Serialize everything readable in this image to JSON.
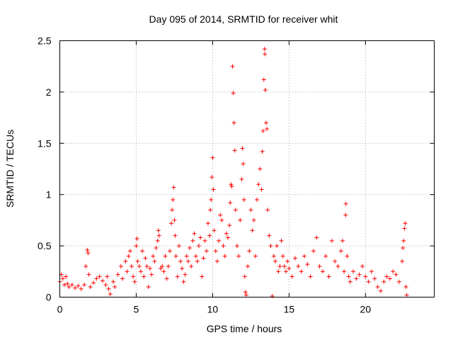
{
  "chart_data": {
    "type": "scatter",
    "title": "Day 095 of 2014, SRMTID for receiver whit",
    "xlabel": "GPS time / hours",
    "ylabel": "SRMTID / TECUs",
    "xlim": [
      0,
      24.5
    ],
    "ylim": [
      0,
      2.5
    ],
    "xticks": [
      0,
      5,
      10,
      15,
      20
    ],
    "xtick_labels": [
      "0",
      "5",
      "10",
      "15",
      "20"
    ],
    "yticks": [
      0,
      0.5,
      1,
      1.5,
      2,
      2.5
    ],
    "ytick_labels": [
      "0",
      "0.5",
      "1",
      "1.5",
      "2",
      "2.5"
    ],
    "grid": true,
    "marker": "+",
    "color": "#ff0000",
    "series": [
      {
        "name": "SRMTID",
        "points": [
          [
            0.0,
            0.15
          ],
          [
            0.1,
            0.22
          ],
          [
            0.2,
            0.18
          ],
          [
            0.3,
            0.12
          ],
          [
            0.4,
            0.2
          ],
          [
            0.5,
            0.13
          ],
          [
            0.6,
            0.1
          ],
          [
            0.8,
            0.12
          ],
          [
            1.0,
            0.09
          ],
          [
            1.2,
            0.11
          ],
          [
            1.4,
            0.08
          ],
          [
            1.6,
            0.12
          ],
          [
            1.7,
            0.3
          ],
          [
            1.8,
            0.46
          ],
          [
            1.85,
            0.43
          ],
          [
            1.9,
            0.22
          ],
          [
            2.0,
            0.1
          ],
          [
            2.2,
            0.14
          ],
          [
            2.4,
            0.18
          ],
          [
            2.6,
            0.2
          ],
          [
            2.8,
            0.16
          ],
          [
            3.0,
            0.12
          ],
          [
            3.1,
            0.2
          ],
          [
            3.2,
            0.08
          ],
          [
            3.3,
            0.03
          ],
          [
            3.5,
            0.15
          ],
          [
            3.6,
            0.1
          ],
          [
            3.8,
            0.22
          ],
          [
            4.0,
            0.3
          ],
          [
            4.1,
            0.18
          ],
          [
            4.3,
            0.35
          ],
          [
            4.4,
            0.25
          ],
          [
            4.5,
            0.4
          ],
          [
            4.6,
            0.45
          ],
          [
            4.7,
            0.3
          ],
          [
            4.8,
            0.2
          ],
          [
            4.9,
            0.15
          ],
          [
            5.0,
            0.5
          ],
          [
            5.05,
            0.57
          ],
          [
            5.1,
            0.35
          ],
          [
            5.2,
            0.3
          ],
          [
            5.3,
            0.25
          ],
          [
            5.4,
            0.45
          ],
          [
            5.5,
            0.2
          ],
          [
            5.6,
            0.38
          ],
          [
            5.7,
            0.3
          ],
          [
            5.8,
            0.1
          ],
          [
            5.9,
            0.28
          ],
          [
            6.0,
            0.22
          ],
          [
            6.1,
            0.4
          ],
          [
            6.2,
            0.35
          ],
          [
            6.3,
            0.48
          ],
          [
            6.4,
            0.55
          ],
          [
            6.45,
            0.65
          ],
          [
            6.5,
            0.6
          ],
          [
            6.6,
            0.28
          ],
          [
            6.7,
            0.3
          ],
          [
            6.8,
            0.25
          ],
          [
            6.9,
            0.4
          ],
          [
            7.0,
            0.18
          ],
          [
            7.1,
            0.3
          ],
          [
            7.2,
            0.45
          ],
          [
            7.3,
            0.72
          ],
          [
            7.35,
            0.85
          ],
          [
            7.4,
            0.95
          ],
          [
            7.45,
            1.07
          ],
          [
            7.5,
            0.75
          ],
          [
            7.55,
            0.6
          ],
          [
            7.6,
            0.4
          ],
          [
            7.7,
            0.2
          ],
          [
            7.8,
            0.5
          ],
          [
            7.9,
            0.35
          ],
          [
            8.0,
            0.28
          ],
          [
            8.1,
            0.15
          ],
          [
            8.2,
            0.22
          ],
          [
            8.3,
            0.4
          ],
          [
            8.4,
            0.35
          ],
          [
            8.5,
            0.48
          ],
          [
            8.6,
            0.3
          ],
          [
            8.7,
            0.55
          ],
          [
            8.8,
            0.62
          ],
          [
            8.9,
            0.4
          ],
          [
            9.0,
            0.35
          ],
          [
            9.1,
            0.5
          ],
          [
            9.2,
            0.58
          ],
          [
            9.3,
            0.2
          ],
          [
            9.4,
            0.38
          ],
          [
            9.5,
            0.55
          ],
          [
            9.6,
            0.45
          ],
          [
            9.7,
            0.72
          ],
          [
            9.8,
            0.6
          ],
          [
            9.85,
            0.85
          ],
          [
            9.9,
            0.95
          ],
          [
            9.95,
            1.17
          ],
          [
            10.0,
            1.36
          ],
          [
            10.05,
            1.05
          ],
          [
            10.1,
            0.65
          ],
          [
            10.2,
            0.45
          ],
          [
            10.3,
            0.35
          ],
          [
            10.4,
            0.55
          ],
          [
            10.5,
            0.8
          ],
          [
            10.6,
            0.75
          ],
          [
            10.7,
            0.5
          ],
          [
            10.8,
            0.4
          ],
          [
            10.9,
            0.62
          ],
          [
            11.0,
            0.58
          ],
          [
            11.1,
            0.7
          ],
          [
            11.15,
            0.92
          ],
          [
            11.2,
            1.1
          ],
          [
            11.25,
            1.08
          ],
          [
            11.3,
            2.25
          ],
          [
            11.35,
            1.99
          ],
          [
            11.4,
            1.7
          ],
          [
            11.45,
            1.43
          ],
          [
            11.5,
            0.85
          ],
          [
            11.6,
            0.5
          ],
          [
            11.7,
            0.4
          ],
          [
            11.8,
            0.75
          ],
          [
            11.9,
            1.15
          ],
          [
            11.95,
            1.45
          ],
          [
            12.0,
            1.3
          ],
          [
            12.05,
            0.95
          ],
          [
            12.1,
            0.2
          ],
          [
            12.15,
            0.05
          ],
          [
            12.2,
            0.02
          ],
          [
            12.3,
            0.3
          ],
          [
            12.4,
            0.45
          ],
          [
            12.5,
            0.85
          ],
          [
            12.6,
            0.65
          ],
          [
            12.7,
            0.75
          ],
          [
            12.8,
            0.4
          ],
          [
            12.9,
            0.95
          ],
          [
            13.0,
            1.1
          ],
          [
            13.1,
            1.25
          ],
          [
            13.2,
            1.05
          ],
          [
            13.25,
            1.42
          ],
          [
            13.3,
            1.62
          ],
          [
            13.35,
            2.12
          ],
          [
            13.4,
            2.42
          ],
          [
            13.42,
            2.37
          ],
          [
            13.45,
            2.02
          ],
          [
            13.5,
            1.7
          ],
          [
            13.55,
            1.64
          ],
          [
            13.6,
            0.85
          ],
          [
            13.7,
            0.6
          ],
          [
            13.8,
            0.5
          ],
          [
            13.9,
            0.01
          ],
          [
            14.0,
            0.4
          ],
          [
            14.1,
            0.35
          ],
          [
            14.2,
            0.5
          ],
          [
            14.3,
            0.25
          ],
          [
            14.4,
            0.3
          ],
          [
            14.5,
            0.55
          ],
          [
            14.6,
            0.4
          ],
          [
            14.7,
            0.3
          ],
          [
            14.8,
            0.25
          ],
          [
            14.9,
            0.35
          ],
          [
            15.0,
            0.28
          ],
          [
            15.2,
            0.2
          ],
          [
            15.4,
            0.38
          ],
          [
            15.6,
            0.3
          ],
          [
            15.8,
            0.25
          ],
          [
            16.0,
            0.4
          ],
          [
            16.2,
            0.32
          ],
          [
            16.4,
            0.2
          ],
          [
            16.6,
            0.45
          ],
          [
            16.8,
            0.58
          ],
          [
            17.0,
            0.3
          ],
          [
            17.2,
            0.25
          ],
          [
            17.4,
            0.4
          ],
          [
            17.6,
            0.2
          ],
          [
            17.8,
            0.55
          ],
          [
            18.0,
            0.35
          ],
          [
            18.2,
            0.3
          ],
          [
            18.4,
            0.45
          ],
          [
            18.5,
            0.55
          ],
          [
            18.6,
            0.25
          ],
          [
            18.7,
            0.8
          ],
          [
            18.72,
            0.91
          ],
          [
            18.8,
            0.4
          ],
          [
            18.9,
            0.2
          ],
          [
            19.0,
            0.15
          ],
          [
            19.2,
            0.25
          ],
          [
            19.4,
            0.18
          ],
          [
            19.6,
            0.22
          ],
          [
            19.8,
            0.3
          ],
          [
            20.0,
            0.2
          ],
          [
            20.2,
            0.15
          ],
          [
            20.4,
            0.25
          ],
          [
            20.6,
            0.18
          ],
          [
            20.8,
            0.1
          ],
          [
            21.0,
            0.06
          ],
          [
            21.2,
            0.15
          ],
          [
            21.4,
            0.2
          ],
          [
            21.6,
            0.18
          ],
          [
            21.8,
            0.25
          ],
          [
            22.0,
            0.22
          ],
          [
            22.2,
            0.15
          ],
          [
            22.4,
            0.35
          ],
          [
            22.45,
            0.48
          ],
          [
            22.5,
            0.55
          ],
          [
            22.55,
            0.67
          ],
          [
            22.6,
            0.72
          ],
          [
            22.65,
            0.1
          ],
          [
            22.7,
            0.02
          ]
        ]
      }
    ]
  }
}
